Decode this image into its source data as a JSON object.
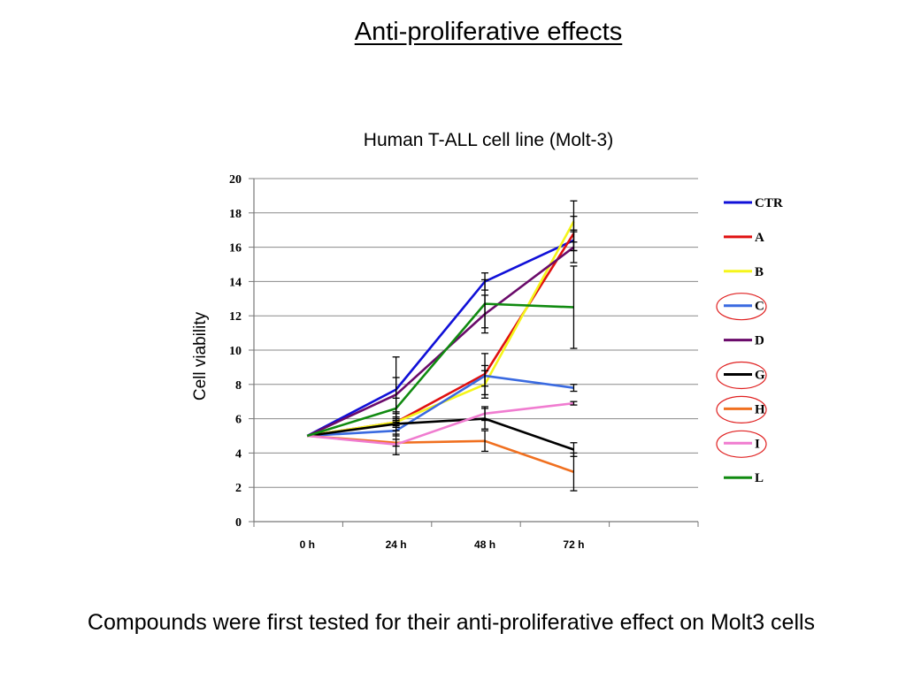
{
  "slide": {
    "title": "Anti-proliferative effects",
    "caption": "Compounds were first tested for their anti-proliferative effect on Molt3 cells"
  },
  "chart_data": {
    "type": "line",
    "title": "Human T-ALL cell line (Molt-3)",
    "xlabel": "",
    "ylabel": "Cell viability",
    "categories": [
      "0 h",
      "24 h",
      "48 h",
      "72 h"
    ],
    "ylim": [
      0,
      20
    ],
    "yticks": [
      0,
      2,
      4,
      6,
      8,
      10,
      12,
      14,
      16,
      18,
      20
    ],
    "grid": true,
    "legend_position": "right",
    "highlighted_legend_entries": [
      "C",
      "G",
      "H",
      "I"
    ],
    "series": [
      {
        "name": "CTR",
        "color": "#1010d8",
        "values": [
          5.0,
          7.7,
          14.0,
          16.4
        ],
        "errors": [
          null,
          1.9,
          0.5,
          0.6
        ]
      },
      {
        "name": "A",
        "color": "#e01010",
        "values": [
          5.0,
          5.8,
          8.6,
          16.8
        ],
        "errors": [
          null,
          0.3,
          1.2,
          1.0
        ]
      },
      {
        "name": "B",
        "color": "#f5f51a",
        "values": [
          5.0,
          5.8,
          8.0,
          17.5
        ],
        "errors": [
          null,
          0.5,
          0.8,
          1.2
        ]
      },
      {
        "name": "C",
        "color": "#3a6ae0",
        "values": [
          5.0,
          5.3,
          8.5,
          7.8
        ],
        "errors": [
          null,
          0.3,
          0.6,
          0.2
        ]
      },
      {
        "name": "D",
        "color": "#6a0a6a",
        "values": [
          5.0,
          7.4,
          12.1,
          16.0
        ],
        "errors": [
          null,
          1.0,
          1.1,
          0.9
        ]
      },
      {
        "name": "G",
        "color": "#000000",
        "values": [
          5.0,
          5.7,
          6.0,
          4.2
        ],
        "errors": [
          null,
          0.2,
          0.6,
          0.4
        ]
      },
      {
        "name": "H",
        "color": "#f07020",
        "values": [
          5.0,
          4.6,
          4.7,
          2.9
        ],
        "errors": [
          null,
          0.2,
          0.6,
          1.1
        ]
      },
      {
        "name": "I",
        "color": "#f07cd0",
        "values": [
          5.0,
          4.5,
          6.3,
          6.9
        ],
        "errors": [
          null,
          0.6,
          0.4,
          0.1
        ]
      },
      {
        "name": "L",
        "color": "#108a10",
        "values": [
          5.0,
          6.6,
          12.7,
          12.5
        ],
        "errors": [
          null,
          0.6,
          1.4,
          2.4
        ]
      }
    ]
  }
}
